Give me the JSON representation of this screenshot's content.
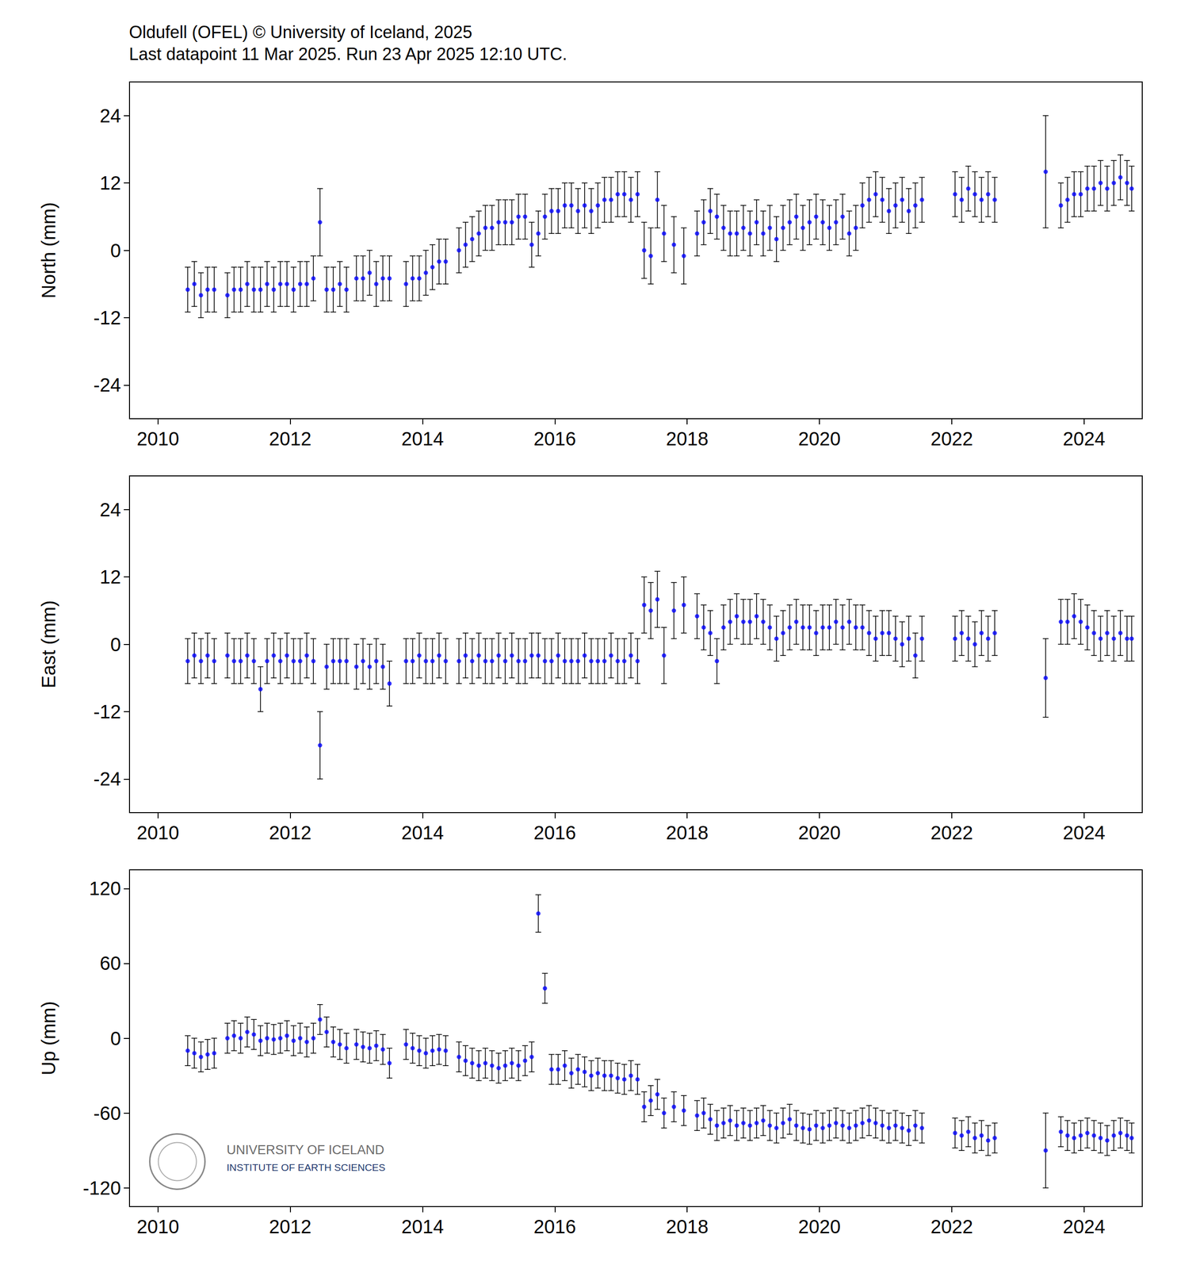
{
  "chart_data": [
    {
      "type": "scatter",
      "title": "Oldufell (OFEL) © University of Iceland, 2025",
      "subtitle": "Last datapoint 11 Mar 2025. Run 23 Apr 2025 12:10 UTC.",
      "ylabel": "North (mm)",
      "color": "#0000ff",
      "marker": "circle",
      "grid": false,
      "xlim": [
        2010.07,
        2025.38
      ],
      "xticks": [
        {
          "value": 2010.5,
          "label": "2010"
        },
        {
          "value": 2012.5,
          "label": "2012"
        },
        {
          "value": 2014.5,
          "label": "2014"
        },
        {
          "value": 2016.5,
          "label": "2016"
        },
        {
          "value": 2018.5,
          "label": "2018"
        },
        {
          "value": 2020.5,
          "label": "2020"
        },
        {
          "value": 2022.5,
          "label": "2022"
        },
        {
          "value": 2024.5,
          "label": "2024"
        }
      ],
      "ylim": [
        -30,
        30
      ],
      "yticks": [
        -24,
        -12,
        0,
        12,
        24
      ],
      "x": [
        2010.95,
        2011.05,
        2011.15,
        2011.25,
        2011.35,
        2011.55,
        2011.65,
        2011.75,
        2011.85,
        2011.95,
        2012.05,
        2012.15,
        2012.25,
        2012.35,
        2012.45,
        2012.55,
        2012.65,
        2012.75,
        2012.85,
        2012.95,
        2013.05,
        2013.15,
        2013.25,
        2013.35,
        2013.5,
        2013.6,
        2013.7,
        2013.8,
        2013.9,
        2014.0,
        2014.25,
        2014.35,
        2014.45,
        2014.55,
        2014.65,
        2014.75,
        2014.85,
        2015.05,
        2015.15,
        2015.25,
        2015.35,
        2015.45,
        2015.55,
        2015.65,
        2015.75,
        2015.85,
        2015.95,
        2016.05,
        2016.15,
        2016.25,
        2016.35,
        2016.45,
        2016.55,
        2016.65,
        2016.75,
        2016.85,
        2016.95,
        2017.05,
        2017.15,
        2017.25,
        2017.35,
        2017.45,
        2017.55,
        2017.65,
        2017.75,
        2017.85,
        2017.95,
        2018.05,
        2018.15,
        2018.3,
        2018.45,
        2018.65,
        2018.75,
        2018.85,
        2018.95,
        2019.05,
        2019.15,
        2019.25,
        2019.35,
        2019.45,
        2019.55,
        2019.65,
        2019.75,
        2019.85,
        2019.95,
        2020.05,
        2020.15,
        2020.25,
        2020.35,
        2020.45,
        2020.55,
        2020.65,
        2020.75,
        2020.85,
        2020.95,
        2021.05,
        2021.15,
        2021.25,
        2021.35,
        2021.45,
        2021.55,
        2021.65,
        2021.75,
        2021.85,
        2021.95,
        2022.05,
        2022.55,
        2022.65,
        2022.75,
        2022.85,
        2022.95,
        2023.05,
        2023.15,
        2023.92,
        2024.15,
        2024.25,
        2024.35,
        2024.45,
        2024.55,
        2024.65,
        2024.75,
        2024.85,
        2024.95,
        2025.05,
        2025.15,
        2025.22
      ],
      "values": [
        -7,
        -6,
        -8,
        -7,
        -7,
        -8,
        -7,
        -7,
        -6,
        -7,
        -7,
        -6,
        -7,
        -6,
        -6,
        -7,
        -6,
        -6,
        -5,
        5,
        -7,
        -7,
        -6,
        -7,
        -5,
        -5,
        -4,
        -6,
        -5,
        -5,
        -6,
        -5,
        -5,
        -4,
        -3,
        -2,
        -2,
        0,
        1,
        2,
        3,
        4,
        4,
        5,
        5,
        5,
        6,
        6,
        1,
        3,
        6,
        7,
        7,
        8,
        8,
        7,
        8,
        7,
        8,
        9,
        9,
        10,
        10,
        9,
        10,
        0,
        -1,
        9,
        3,
        1,
        -1,
        3,
        5,
        7,
        6,
        4,
        3,
        3,
        4,
        3,
        5,
        3,
        4,
        2,
        4,
        5,
        6,
        4,
        5,
        6,
        5,
        4,
        5,
        6,
        3,
        4,
        8,
        9,
        10,
        9,
        7,
        8,
        9,
        7,
        8,
        9,
        10,
        9,
        11,
        10,
        9,
        10,
        9,
        14,
        8,
        9,
        10,
        10,
        11,
        11,
        12,
        11,
        12,
        13,
        12,
        11
      ],
      "errors": [
        4,
        4,
        4,
        4,
        4,
        4,
        4,
        4,
        4,
        4,
        4,
        4,
        4,
        4,
        4,
        4,
        4,
        4,
        4,
        6,
        4,
        4,
        4,
        4,
        4,
        4,
        4,
        4,
        4,
        4,
        4,
        4,
        4,
        4,
        4,
        4,
        4,
        4,
        4,
        4,
        4,
        4,
        4,
        4,
        4,
        4,
        4,
        4,
        4,
        4,
        4,
        4,
        4,
        4,
        4,
        4,
        4,
        4,
        4,
        4,
        4,
        4,
        4,
        4,
        4,
        5,
        5,
        5,
        5,
        5,
        5,
        4,
        4,
        4,
        4,
        4,
        4,
        4,
        4,
        4,
        4,
        4,
        4,
        4,
        4,
        4,
        4,
        4,
        4,
        4,
        4,
        4,
        4,
        4,
        4,
        4,
        4,
        4,
        4,
        4,
        4,
        4,
        4,
        4,
        4,
        4,
        4,
        4,
        4,
        4,
        4,
        4,
        4,
        10,
        4,
        4,
        4,
        4,
        4,
        4,
        4,
        4,
        4,
        4,
        4,
        4
      ]
    },
    {
      "type": "scatter",
      "ylabel": "East (mm)",
      "color": "#0000ff",
      "marker": "circle",
      "grid": false,
      "xlim": [
        2010.07,
        2025.38
      ],
      "xticks": [
        {
          "value": 2010.5,
          "label": "2010"
        },
        {
          "value": 2012.5,
          "label": "2012"
        },
        {
          "value": 2014.5,
          "label": "2014"
        },
        {
          "value": 2016.5,
          "label": "2016"
        },
        {
          "value": 2018.5,
          "label": "2018"
        },
        {
          "value": 2020.5,
          "label": "2020"
        },
        {
          "value": 2022.5,
          "label": "2022"
        },
        {
          "value": 2024.5,
          "label": "2024"
        }
      ],
      "ylim": [
        -30,
        30
      ],
      "yticks": [
        -24,
        -12,
        0,
        12,
        24
      ],
      "x": [
        2010.95,
        2011.05,
        2011.15,
        2011.25,
        2011.35,
        2011.55,
        2011.65,
        2011.75,
        2011.85,
        2011.95,
        2012.05,
        2012.15,
        2012.25,
        2012.35,
        2012.45,
        2012.55,
        2012.65,
        2012.75,
        2012.85,
        2012.95,
        2013.05,
        2013.15,
        2013.25,
        2013.35,
        2013.5,
        2013.6,
        2013.7,
        2013.8,
        2013.9,
        2014.0,
        2014.25,
        2014.35,
        2014.45,
        2014.55,
        2014.65,
        2014.75,
        2014.85,
        2015.05,
        2015.15,
        2015.25,
        2015.35,
        2015.45,
        2015.55,
        2015.65,
        2015.75,
        2015.85,
        2015.95,
        2016.05,
        2016.15,
        2016.25,
        2016.35,
        2016.45,
        2016.55,
        2016.65,
        2016.75,
        2016.85,
        2016.95,
        2017.05,
        2017.15,
        2017.25,
        2017.35,
        2017.45,
        2017.55,
        2017.65,
        2017.75,
        2017.85,
        2017.95,
        2018.05,
        2018.15,
        2018.3,
        2018.45,
        2018.65,
        2018.75,
        2018.85,
        2018.95,
        2019.05,
        2019.15,
        2019.25,
        2019.35,
        2019.45,
        2019.55,
        2019.65,
        2019.75,
        2019.85,
        2019.95,
        2020.05,
        2020.15,
        2020.25,
        2020.35,
        2020.45,
        2020.55,
        2020.65,
        2020.75,
        2020.85,
        2020.95,
        2021.05,
        2021.15,
        2021.25,
        2021.35,
        2021.45,
        2021.55,
        2021.65,
        2021.75,
        2021.85,
        2021.95,
        2022.05,
        2022.55,
        2022.65,
        2022.75,
        2022.85,
        2022.95,
        2023.05,
        2023.15,
        2023.92,
        2024.15,
        2024.25,
        2024.35,
        2024.45,
        2024.55,
        2024.65,
        2024.75,
        2024.85,
        2024.95,
        2025.05,
        2025.15,
        2025.22
      ],
      "values": [
        -3,
        -2,
        -3,
        -2,
        -3,
        -2,
        -3,
        -3,
        -2,
        -3,
        -8,
        -3,
        -2,
        -3,
        -2,
        -3,
        -3,
        -2,
        -3,
        -18,
        -4,
        -3,
        -3,
        -3,
        -4,
        -3,
        -4,
        -3,
        -4,
        -7,
        -3,
        -3,
        -2,
        -3,
        -3,
        -2,
        -3,
        -3,
        -2,
        -3,
        -2,
        -3,
        -3,
        -2,
        -3,
        -2,
        -3,
        -3,
        -2,
        -2,
        -3,
        -3,
        -2,
        -3,
        -3,
        -3,
        -2,
        -3,
        -3,
        -3,
        -2,
        -3,
        -3,
        -2,
        -3,
        7,
        6,
        8,
        -2,
        6,
        7,
        5,
        3,
        2,
        -3,
        3,
        4,
        5,
        4,
        4,
        5,
        4,
        3,
        1,
        2,
        3,
        4,
        3,
        3,
        2,
        3,
        3,
        4,
        3,
        4,
        3,
        3,
        2,
        1,
        2,
        2,
        1,
        0,
        1,
        -2,
        1,
        1,
        2,
        1,
        0,
        2,
        1,
        2,
        -6,
        4,
        4,
        5,
        4,
        3,
        2,
        1,
        2,
        1,
        2,
        1,
        1
      ],
      "errors": [
        4,
        4,
        4,
        4,
        4,
        4,
        4,
        4,
        4,
        4,
        4,
        4,
        4,
        4,
        4,
        4,
        4,
        4,
        4,
        6,
        4,
        4,
        4,
        4,
        4,
        4,
        4,
        4,
        4,
        4,
        4,
        4,
        4,
        4,
        4,
        4,
        4,
        4,
        4,
        4,
        4,
        4,
        4,
        4,
        4,
        4,
        4,
        4,
        4,
        4,
        4,
        4,
        4,
        4,
        4,
        4,
        4,
        4,
        4,
        4,
        4,
        4,
        4,
        4,
        4,
        5,
        5,
        5,
        5,
        5,
        5,
        4,
        4,
        4,
        4,
        4,
        4,
        4,
        4,
        4,
        4,
        4,
        4,
        4,
        4,
        4,
        4,
        4,
        4,
        4,
        4,
        4,
        4,
        4,
        4,
        4,
        4,
        4,
        4,
        4,
        4,
        4,
        4,
        4,
        4,
        4,
        4,
        4,
        4,
        4,
        4,
        4,
        4,
        7,
        4,
        4,
        4,
        4,
        4,
        4,
        4,
        4,
        4,
        4,
        4,
        4
      ]
    },
    {
      "type": "scatter",
      "ylabel": "Up (mm)",
      "annotations": [
        "UNIVERSITY OF ICELAND",
        "INSTITUTE OF EARTH SCIENCES"
      ],
      "color": "#0000ff",
      "marker": "circle",
      "grid": false,
      "xlim": [
        2010.07,
        2025.38
      ],
      "xticks": [
        {
          "value": 2010.5,
          "label": "2010"
        },
        {
          "value": 2012.5,
          "label": "2012"
        },
        {
          "value": 2014.5,
          "label": "2014"
        },
        {
          "value": 2016.5,
          "label": "2016"
        },
        {
          "value": 2018.5,
          "label": "2018"
        },
        {
          "value": 2020.5,
          "label": "2020"
        },
        {
          "value": 2022.5,
          "label": "2022"
        },
        {
          "value": 2024.5,
          "label": "2024"
        }
      ],
      "ylim": [
        -135,
        135
      ],
      "yticks": [
        -120,
        -60,
        0,
        60,
        120
      ],
      "x": [
        2010.95,
        2011.05,
        2011.15,
        2011.25,
        2011.35,
        2011.55,
        2011.65,
        2011.75,
        2011.85,
        2011.95,
        2012.05,
        2012.15,
        2012.25,
        2012.35,
        2012.45,
        2012.55,
        2012.65,
        2012.75,
        2012.85,
        2012.95,
        2013.05,
        2013.15,
        2013.25,
        2013.35,
        2013.5,
        2013.6,
        2013.7,
        2013.8,
        2013.9,
        2014.0,
        2014.25,
        2014.35,
        2014.45,
        2014.55,
        2014.65,
        2014.75,
        2014.85,
        2015.05,
        2015.15,
        2015.25,
        2015.35,
        2015.45,
        2015.55,
        2015.65,
        2015.75,
        2015.85,
        2015.95,
        2016.05,
        2016.15,
        2016.25,
        2016.35,
        2016.45,
        2016.55,
        2016.65,
        2016.75,
        2016.85,
        2016.95,
        2017.05,
        2017.15,
        2017.25,
        2017.35,
        2017.45,
        2017.55,
        2017.65,
        2017.75,
        2017.85,
        2017.95,
        2018.05,
        2018.15,
        2018.3,
        2018.45,
        2018.65,
        2018.75,
        2018.85,
        2018.95,
        2019.05,
        2019.15,
        2019.25,
        2019.35,
        2019.45,
        2019.55,
        2019.65,
        2019.75,
        2019.85,
        2019.95,
        2020.05,
        2020.15,
        2020.25,
        2020.35,
        2020.45,
        2020.55,
        2020.65,
        2020.75,
        2020.85,
        2020.95,
        2021.05,
        2021.15,
        2021.25,
        2021.35,
        2021.45,
        2021.55,
        2021.65,
        2021.75,
        2021.85,
        2021.95,
        2022.05,
        2022.55,
        2022.65,
        2022.75,
        2022.85,
        2022.95,
        2023.05,
        2023.15,
        2023.92,
        2024.15,
        2024.25,
        2024.35,
        2024.45,
        2024.55,
        2024.65,
        2024.75,
        2024.85,
        2024.95,
        2025.05,
        2025.15,
        2025.22
      ],
      "values": [
        -10,
        -12,
        -15,
        -13,
        -12,
        0,
        2,
        0,
        5,
        3,
        -2,
        0,
        -1,
        0,
        2,
        -2,
        0,
        -3,
        0,
        15,
        5,
        -3,
        -5,
        -8,
        -5,
        -7,
        -8,
        -6,
        -9,
        -20,
        -5,
        -8,
        -10,
        -12,
        -10,
        -9,
        -10,
        -15,
        -18,
        -20,
        -22,
        -20,
        -22,
        -24,
        -22,
        -20,
        -22,
        -18,
        -15,
        100,
        40,
        -25,
        -25,
        -22,
        -28,
        -25,
        -27,
        -30,
        -28,
        -30,
        -30,
        -32,
        -33,
        -30,
        -33,
        -55,
        -50,
        -45,
        -60,
        -55,
        -58,
        -62,
        -60,
        -65,
        -70,
        -68,
        -66,
        -70,
        -68,
        -70,
        -68,
        -66,
        -70,
        -72,
        -68,
        -65,
        -70,
        -72,
        -73,
        -70,
        -72,
        -70,
        -68,
        -70,
        -72,
        -70,
        -68,
        -66,
        -68,
        -70,
        -72,
        -70,
        -72,
        -74,
        -70,
        -72,
        -76,
        -78,
        -75,
        -80,
        -78,
        -82,
        -80,
        -90,
        -75,
        -78,
        -80,
        -78,
        -76,
        -78,
        -80,
        -82,
        -78,
        -76,
        -78,
        -80
      ],
      "errors": [
        12,
        12,
        12,
        12,
        12,
        12,
        12,
        12,
        12,
        12,
        12,
        12,
        12,
        12,
        12,
        12,
        12,
        12,
        12,
        12,
        12,
        12,
        12,
        12,
        12,
        12,
        12,
        12,
        12,
        12,
        12,
        12,
        12,
        12,
        12,
        12,
        12,
        12,
        12,
        12,
        12,
        12,
        12,
        12,
        12,
        12,
        12,
        12,
        12,
        15,
        12,
        12,
        12,
        12,
        12,
        12,
        12,
        12,
        12,
        12,
        12,
        12,
        12,
        12,
        12,
        12,
        12,
        12,
        12,
        12,
        12,
        12,
        12,
        12,
        12,
        12,
        12,
        12,
        12,
        12,
        12,
        12,
        12,
        12,
        12,
        12,
        12,
        12,
        12,
        12,
        12,
        12,
        12,
        12,
        12,
        12,
        12,
        12,
        12,
        12,
        12,
        12,
        12,
        12,
        12,
        12,
        12,
        12,
        12,
        12,
        12,
        12,
        12,
        30,
        12,
        12,
        12,
        12,
        12,
        12,
        12,
        12,
        12,
        12,
        12,
        12
      ]
    }
  ]
}
